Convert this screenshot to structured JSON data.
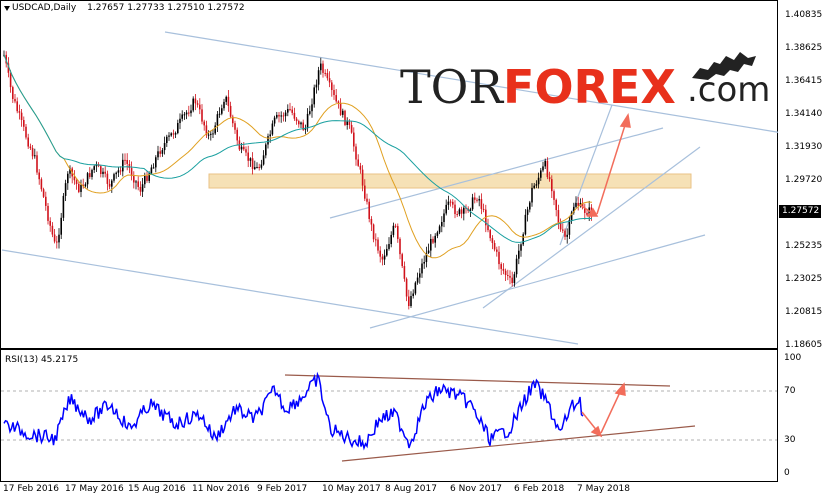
{
  "chart": {
    "symbol": "USDCAD,Daily",
    "ohlc": "1.27657 1.27733 1.27510 1.27572",
    "current_price": "1.27572",
    "price_axis": [
      "1.40835",
      "1.38625",
      "1.36415",
      "1.34140",
      "1.31930",
      "1.29720",
      "1.25235",
      "1.23025",
      "1.20815",
      "1.18605"
    ],
    "date_axis": [
      "17 Feb 2016",
      "17 May 2016",
      "15 Aug 2016",
      "11 Nov 2016",
      "9 Feb 2017",
      "10 May 2017",
      "8 Aug 2017",
      "6 Nov 2017",
      "6 Feb 2018",
      "7 May 2018"
    ],
    "colors": {
      "bull": "#000000",
      "bear": "#d0121b",
      "ma_fast": "#e0a020",
      "ma_slow": "#1aa0a0",
      "trendline": "#a8c0dc",
      "zone": "#f5dcaa",
      "arrow": "#f26d5b",
      "rsi_line": "#0000ff",
      "rsi_channel": "#9a5a4a"
    }
  },
  "rsi": {
    "header": "RSI(13) 45.2175",
    "levels": [
      "100",
      "70",
      "30",
      "0"
    ]
  },
  "logo": {
    "tor": "TOR",
    "forex": "FOREX",
    "domain": ".com",
    "icon": "bull-bear-icon"
  }
}
